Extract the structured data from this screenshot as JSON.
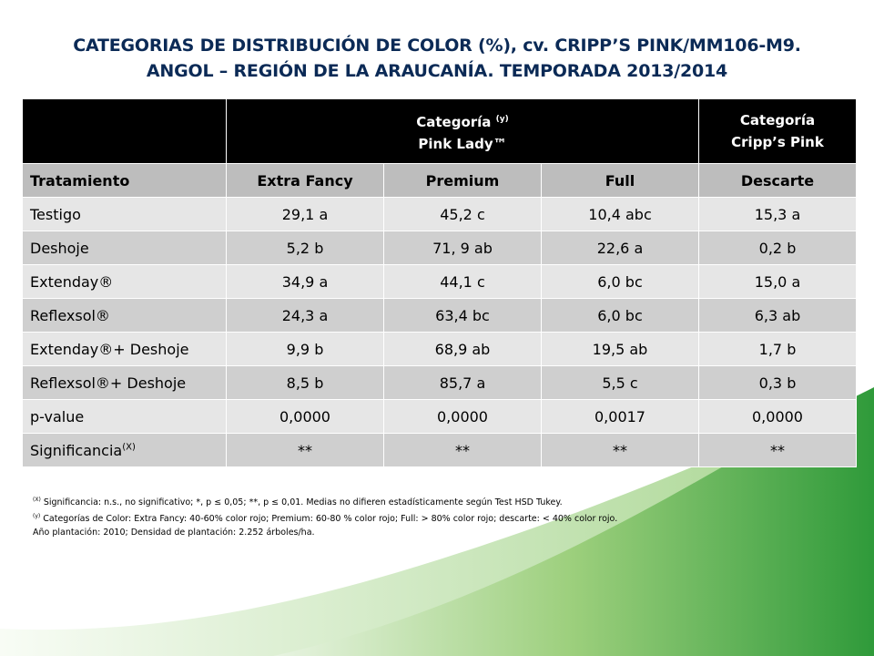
{
  "title": {
    "line1": "CATEGORIAS DE DISTRIBUCIÓN DE COLOR (%), cv. CRIPP’S PINK/MM106-M9.",
    "line2": "ANGOL – REGIÓN DE LA ARAUCANÍA. TEMPORADA 2013/2014"
  },
  "table": {
    "group_header_1": {
      "label": "Categoría",
      "sup": "(y)",
      "sub": "Pink Lady™"
    },
    "group_header_2": {
      "label": "Categoría",
      "sub": "Cripp’s Pink"
    },
    "columns": [
      "Tratamiento",
      "Extra Fancy",
      "Premium",
      "Full",
      "Descarte"
    ],
    "rows": [
      [
        "Testigo",
        "29,1 a",
        "45,2 c",
        "10,4 abc",
        "15,3 a"
      ],
      [
        "Deshoje",
        "5,2 b",
        "71, 9 ab",
        "22,6 a",
        "0,2 b"
      ],
      [
        "Extenday®",
        "34,9 a",
        "44,1 c",
        "6,0 bc",
        "15,0 a"
      ],
      [
        "Reflexsol®",
        "24,3 a",
        "63,4 bc",
        "6,0 bc",
        "6,3 ab"
      ],
      [
        "Extenday®+ Deshoje",
        "9,9 b",
        "68,9 ab",
        "19,5 ab",
        "1,7 b"
      ],
      [
        "Reflexsol®+ Deshoje",
        "8,5 b",
        "85,7 a",
        "5,5 c",
        "0,3 b"
      ],
      [
        "p-value",
        "0,0000",
        "0,0000",
        "0,0017",
        "0,0000"
      ]
    ],
    "significance_row": {
      "label": "Significancia",
      "sup": "(X)",
      "values": [
        "**",
        "**",
        "**",
        "**"
      ]
    }
  },
  "notes": {
    "x": {
      "sup": "(X)",
      "text": "Significancia: n.s., no significativo; *, p ≤ 0,05; **, p ≤ 0,01. Medias no difieren estadísticamente según Test HSD Tukey."
    },
    "y": {
      "sup": "(y)",
      "text": "Categorías de Color: Extra Fancy: 40-60% color rojo; Premium: 60-80 % color rojo; Full: > 80% color rojo; descarte: < 40% color rojo."
    },
    "plantation": "Año plantación: 2010; Densidad de plantación: 2.252 árboles/ha."
  },
  "colors": {
    "title": "#0b2a56",
    "header_bg": "#000000",
    "column_header_bg": "#bdbdbd",
    "row_light": "#e6e6e6",
    "row_dark": "#cfcfcf",
    "accent_green": "#2f9a3a"
  }
}
